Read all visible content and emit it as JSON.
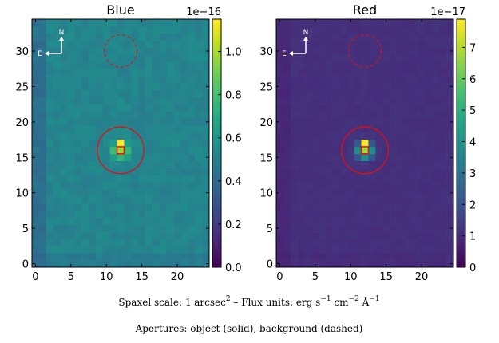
{
  "chart_data": [
    {
      "type": "heatmap",
      "title": "Blue",
      "colorbar_label": "1e−16",
      "colorbar_ticks": [
        "0.0",
        "0.2",
        "0.4",
        "0.6",
        "0.8",
        "1.0"
      ],
      "colorbar_values": [
        0.0,
        0.2,
        0.4,
        0.6,
        0.8,
        1.0
      ],
      "color_range": [
        0.0,
        1.15
      ],
      "background_level": 0.52,
      "peak_level": 1.15,
      "x_ticks": [
        "0",
        "5",
        "10",
        "15",
        "20"
      ],
      "y_ticks": [
        "0",
        "5",
        "10",
        "15",
        "20",
        "25",
        "30"
      ],
      "xlim": [
        -0.5,
        24.5
      ],
      "ylim": [
        -0.5,
        34.5
      ],
      "compass": {
        "north": "N",
        "east": "E"
      },
      "object_aperture": {
        "x": 12,
        "y": 16,
        "radius": 3.3,
        "style": "solid"
      },
      "background_aperture": {
        "x": 12,
        "y": 30,
        "radius": 2.3,
        "style": "dashed"
      },
      "peak_pixel": {
        "x": 12,
        "y": 16
      }
    },
    {
      "type": "heatmap",
      "title": "Red",
      "colorbar_label": "1e−17",
      "colorbar_ticks": [
        "0",
        "1",
        "2",
        "3",
        "4",
        "5",
        "6",
        "7"
      ],
      "colorbar_values": [
        0,
        1,
        2,
        3,
        4,
        5,
        6,
        7
      ],
      "color_range": [
        0,
        7.9
      ],
      "background_level": 1.1,
      "peak_level": 7.9,
      "x_ticks": [
        "0",
        "5",
        "10",
        "15",
        "20"
      ],
      "y_ticks": [
        "0",
        "5",
        "10",
        "15",
        "20",
        "25",
        "30"
      ],
      "xlim": [
        -0.5,
        24.5
      ],
      "ylim": [
        -0.5,
        34.5
      ],
      "compass": {
        "north": "N",
        "east": "E"
      },
      "object_aperture": {
        "x": 12,
        "y": 16,
        "radius": 3.3,
        "style": "solid"
      },
      "background_aperture": {
        "x": 12,
        "y": 30,
        "radius": 2.3,
        "style": "dashed"
      },
      "peak_pixel": {
        "x": 12,
        "y": 16
      }
    }
  ],
  "caption": {
    "line1_prefix": "Spaxel scale: 1 arcsec",
    "line1_sup": "2",
    "line1_mid": " – Flux units: erg s",
    "line1_sup2": "−1",
    "line1_cm": " cm",
    "line1_sup3": "−2",
    "line1_ang": " Å",
    "line1_sup4": "−1",
    "line2": "Apertures: object (solid), background (dashed)"
  },
  "colors": {
    "aperture": "#e01010",
    "peak_edge": "#e01010"
  }
}
